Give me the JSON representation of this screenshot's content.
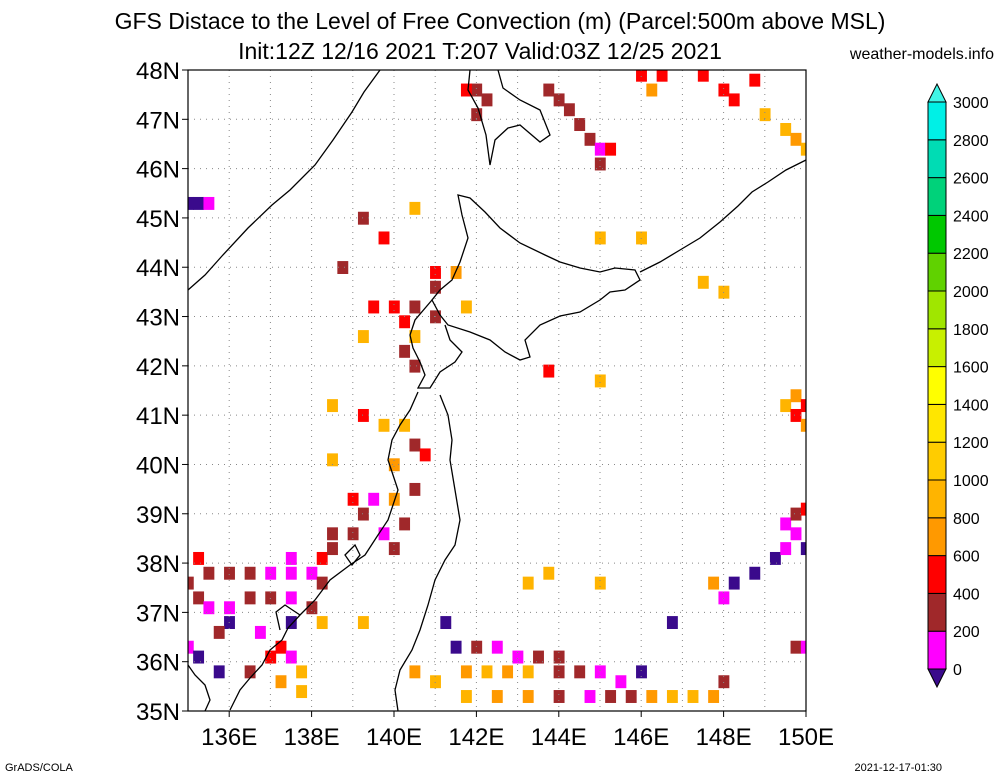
{
  "title_line1": "GFS Distace to the Level of Free Convection (m) (Parcel:500m above MSL)",
  "title_line2": "Init:12Z 12/16 2021 T:207 Valid:03Z 12/25 2021",
  "credit": "weather-models.info",
  "footer_left": "GrADS/COLA",
  "footer_right": "2021-12-17-01:30",
  "map": {
    "lat_range": [
      35,
      48
    ],
    "lon_range": [
      135,
      150
    ],
    "lat_labels": [
      "35N",
      "36N",
      "37N",
      "38N",
      "39N",
      "40N",
      "41N",
      "42N",
      "43N",
      "44N",
      "45N",
      "46N",
      "47N",
      "48N"
    ],
    "lon_labels": [
      "136E",
      "138E",
      "140E",
      "142E",
      "144E",
      "146E",
      "148E",
      "150E"
    ],
    "grid": "dotted"
  },
  "colorbar": {
    "levels": [
      "0",
      "200",
      "400",
      "600",
      "800",
      "1000",
      "1200",
      "1400",
      "1600",
      "1800",
      "2000",
      "2200",
      "2400",
      "2600",
      "2800",
      "3000"
    ],
    "colors": [
      "#3a0a8c",
      "#ff00ff",
      "#a0282a",
      "#ff0000",
      "#ff9900",
      "#ffb400",
      "#ffcc00",
      "#ffe600",
      "#ffff00",
      "#c8f000",
      "#a0e600",
      "#60d200",
      "#00c800",
      "#00d27a",
      "#00dcb4",
      "#00f0e6",
      "#40f5e6"
    ]
  },
  "cells": [
    [
      135.0,
      45.3,
      "#3a0a8c"
    ],
    [
      135.25,
      45.3,
      "#3a0a8c"
    ],
    [
      135.5,
      45.3,
      "#ff00ff"
    ],
    [
      142.0,
      47.6,
      "#a0282a"
    ],
    [
      142.25,
      47.4,
      "#a0282a"
    ],
    [
      141.75,
      47.6,
      "#ff0000"
    ],
    [
      142.0,
      47.1,
      "#a0282a"
    ],
    [
      143.75,
      47.6,
      "#a0282a"
    ],
    [
      144.0,
      47.4,
      "#a0282a"
    ],
    [
      144.25,
      47.2,
      "#a0282a"
    ],
    [
      144.5,
      46.9,
      "#a0282a"
    ],
    [
      144.75,
      46.6,
      "#a0282a"
    ],
    [
      145.0,
      46.4,
      "#ff00ff"
    ],
    [
      145.25,
      46.4,
      "#ff0000"
    ],
    [
      145.0,
      46.1,
      "#a0282a"
    ],
    [
      146.0,
      47.9,
      "#ff0000"
    ],
    [
      146.5,
      47.9,
      "#ff0000"
    ],
    [
      146.25,
      47.6,
      "#ff9900"
    ],
    [
      147.5,
      47.9,
      "#ff0000"
    ],
    [
      148.0,
      47.6,
      "#ff0000"
    ],
    [
      148.25,
      47.4,
      "#ff0000"
    ],
    [
      148.75,
      47.8,
      "#ff0000"
    ],
    [
      149.0,
      47.1,
      "#ffb400"
    ],
    [
      149.5,
      46.8,
      "#ffb400"
    ],
    [
      149.75,
      46.6,
      "#ff9900"
    ],
    [
      150.0,
      46.4,
      "#ffb400"
    ],
    [
      139.25,
      45.0,
      "#a0282a"
    ],
    [
      139.75,
      44.6,
      "#ff0000"
    ],
    [
      140.5,
      45.2,
      "#ffb400"
    ],
    [
      138.75,
      44.0,
      "#a0282a"
    ],
    [
      141.0,
      43.9,
      "#ff0000"
    ],
    [
      141.5,
      43.9,
      "#ff9900"
    ],
    [
      141.0,
      43.6,
      "#a0282a"
    ],
    [
      139.5,
      43.2,
      "#ff0000"
    ],
    [
      140.0,
      43.2,
      "#ff0000"
    ],
    [
      140.5,
      43.2,
      "#a0282a"
    ],
    [
      141.0,
      43.0,
      "#a0282a"
    ],
    [
      140.25,
      42.9,
      "#ff0000"
    ],
    [
      140.5,
      42.6,
      "#ffb400"
    ],
    [
      140.25,
      42.3,
      "#a0282a"
    ],
    [
      140.5,
      42.0,
      "#a0282a"
    ],
    [
      139.25,
      42.6,
      "#ffb400"
    ],
    [
      141.75,
      43.2,
      "#ffb400"
    ],
    [
      145.0,
      44.6,
      "#ffb400"
    ],
    [
      146.0,
      44.6,
      "#ffb400"
    ],
    [
      147.5,
      43.7,
      "#ffb400"
    ],
    [
      148.0,
      43.5,
      "#ffb400"
    ],
    [
      143.75,
      41.9,
      "#ff0000"
    ],
    [
      145.0,
      41.7,
      "#ffb400"
    ],
    [
      138.5,
      41.2,
      "#ffb400"
    ],
    [
      139.25,
      41.0,
      "#ff0000"
    ],
    [
      139.75,
      40.8,
      "#ffb400"
    ],
    [
      140.25,
      40.8,
      "#ffb400"
    ],
    [
      138.5,
      40.1,
      "#ffb400"
    ],
    [
      140.5,
      40.4,
      "#a0282a"
    ],
    [
      140.75,
      40.2,
      "#ff0000"
    ],
    [
      140.0,
      40.0,
      "#ff9900"
    ],
    [
      139.0,
      39.3,
      "#ff0000"
    ],
    [
      139.5,
      39.3,
      "#ff00ff"
    ],
    [
      139.25,
      39.0,
      "#a0282a"
    ],
    [
      140.0,
      39.3,
      "#ff9900"
    ],
    [
      140.5,
      39.5,
      "#a0282a"
    ],
    [
      140.25,
      38.8,
      "#a0282a"
    ],
    [
      139.0,
      38.6,
      "#a0282a"
    ],
    [
      138.5,
      38.6,
      "#a0282a"
    ],
    [
      139.75,
      38.6,
      "#ff00ff"
    ],
    [
      140.0,
      38.3,
      "#a0282a"
    ],
    [
      135.25,
      38.1,
      "#ff0000"
    ],
    [
      135.5,
      37.8,
      "#a0282a"
    ],
    [
      136.0,
      37.8,
      "#a0282a"
    ],
    [
      136.5,
      37.8,
      "#a0282a"
    ],
    [
      137.0,
      37.8,
      "#ff00ff"
    ],
    [
      137.5,
      37.8,
      "#ff00ff"
    ],
    [
      138.0,
      37.8,
      "#ff00ff"
    ],
    [
      137.5,
      38.1,
      "#ff00ff"
    ],
    [
      138.25,
      38.1,
      "#ff0000"
    ],
    [
      138.5,
      38.3,
      "#a0282a"
    ],
    [
      135.0,
      37.6,
      "#a0282a"
    ],
    [
      135.25,
      37.3,
      "#a0282a"
    ],
    [
      135.5,
      37.1,
      "#ff00ff"
    ],
    [
      136.0,
      37.1,
      "#ff00ff"
    ],
    [
      136.5,
      37.3,
      "#a0282a"
    ],
    [
      137.0,
      37.3,
      "#a0282a"
    ],
    [
      137.5,
      37.3,
      "#ff00ff"
    ],
    [
      138.0,
      37.1,
      "#a0282a"
    ],
    [
      138.25,
      37.6,
      "#a0282a"
    ],
    [
      136.0,
      36.8,
      "#3a0a8c"
    ],
    [
      135.75,
      36.6,
      "#a0282a"
    ],
    [
      137.5,
      36.8,
      "#3a0a8c"
    ],
    [
      138.25,
      36.8,
      "#ffb400"
    ],
    [
      135.0,
      36.3,
      "#ff00ff"
    ],
    [
      135.25,
      36.1,
      "#3a0a8c"
    ],
    [
      135.75,
      35.8,
      "#3a0a8c"
    ],
    [
      136.75,
      36.6,
      "#ff00ff"
    ],
    [
      137.0,
      36.1,
      "#ff0000"
    ],
    [
      137.25,
      36.3,
      "#ff0000"
    ],
    [
      137.5,
      36.1,
      "#ff00ff"
    ],
    [
      137.75,
      35.8,
      "#ffb400"
    ],
    [
      136.5,
      35.8,
      "#a0282a"
    ],
    [
      137.25,
      35.6,
      "#ff9900"
    ],
    [
      137.75,
      35.4,
      "#ffb400"
    ],
    [
      139.25,
      36.8,
      "#ffb400"
    ],
    [
      141.25,
      36.8,
      "#3a0a8c"
    ],
    [
      143.25,
      37.6,
      "#ffb400"
    ],
    [
      143.75,
      37.8,
      "#ffb400"
    ],
    [
      145.0,
      37.6,
      "#ffb400"
    ],
    [
      140.5,
      35.8,
      "#ff9900"
    ],
    [
      141.0,
      35.6,
      "#ffb400"
    ],
    [
      141.5,
      36.3,
      "#3a0a8c"
    ],
    [
      142.0,
      36.3,
      "#a0282a"
    ],
    [
      142.5,
      36.3,
      "#ff00ff"
    ],
    [
      143.0,
      36.1,
      "#ff00ff"
    ],
    [
      143.5,
      36.1,
      "#a0282a"
    ],
    [
      144.0,
      36.1,
      "#a0282a"
    ],
    [
      141.75,
      35.8,
      "#ff9900"
    ],
    [
      142.25,
      35.8,
      "#ffb400"
    ],
    [
      142.75,
      35.8,
      "#ff9900"
    ],
    [
      143.25,
      35.8,
      "#ffb400"
    ],
    [
      144.0,
      35.8,
      "#a0282a"
    ],
    [
      141.75,
      35.3,
      "#ffb400"
    ],
    [
      142.5,
      35.3,
      "#ff9900"
    ],
    [
      143.25,
      35.3,
      "#ff9900"
    ],
    [
      144.0,
      35.3,
      "#a0282a"
    ],
    [
      144.5,
      35.8,
      "#a0282a"
    ],
    [
      145.0,
      35.8,
      "#ff00ff"
    ],
    [
      145.5,
      35.6,
      "#ff00ff"
    ],
    [
      146.0,
      35.8,
      "#3a0a8c"
    ],
    [
      144.75,
      35.3,
      "#ff00ff"
    ],
    [
      145.25,
      35.3,
      "#a0282a"
    ],
    [
      145.75,
      35.3,
      "#a0282a"
    ],
    [
      146.25,
      35.3,
      "#ff9900"
    ],
    [
      146.75,
      35.3,
      "#ffb400"
    ],
    [
      147.25,
      35.3,
      "#ffb400"
    ],
    [
      147.75,
      35.3,
      "#ff9900"
    ],
    [
      148.0,
      35.6,
      "#a0282a"
    ],
    [
      146.75,
      36.8,
      "#3a0a8c"
    ],
    [
      147.75,
      37.6,
      "#ff9900"
    ],
    [
      148.0,
      37.3,
      "#ff00ff"
    ],
    [
      148.25,
      37.6,
      "#3a0a8c"
    ],
    [
      148.75,
      37.8,
      "#3a0a8c"
    ],
    [
      149.25,
      38.1,
      "#3a0a8c"
    ],
    [
      149.5,
      38.3,
      "#ff00ff"
    ],
    [
      149.75,
      38.6,
      "#ff00ff"
    ],
    [
      150.0,
      38.3,
      "#3a0a8c"
    ],
    [
      149.5,
      38.8,
      "#ff00ff"
    ],
    [
      149.75,
      39.0,
      "#a0282a"
    ],
    [
      150.0,
      39.1,
      "#ff0000"
    ],
    [
      149.75,
      36.3,
      "#a0282a"
    ],
    [
      150.0,
      36.3,
      "#ff00ff"
    ],
    [
      149.5,
      41.2,
      "#ffb400"
    ],
    [
      149.75,
      41.4,
      "#ff9900"
    ],
    [
      150.0,
      41.2,
      "#ff0000"
    ],
    [
      149.75,
      41.0,
      "#ff0000"
    ],
    [
      150.0,
      40.8,
      "#ff9900"
    ]
  ]
}
